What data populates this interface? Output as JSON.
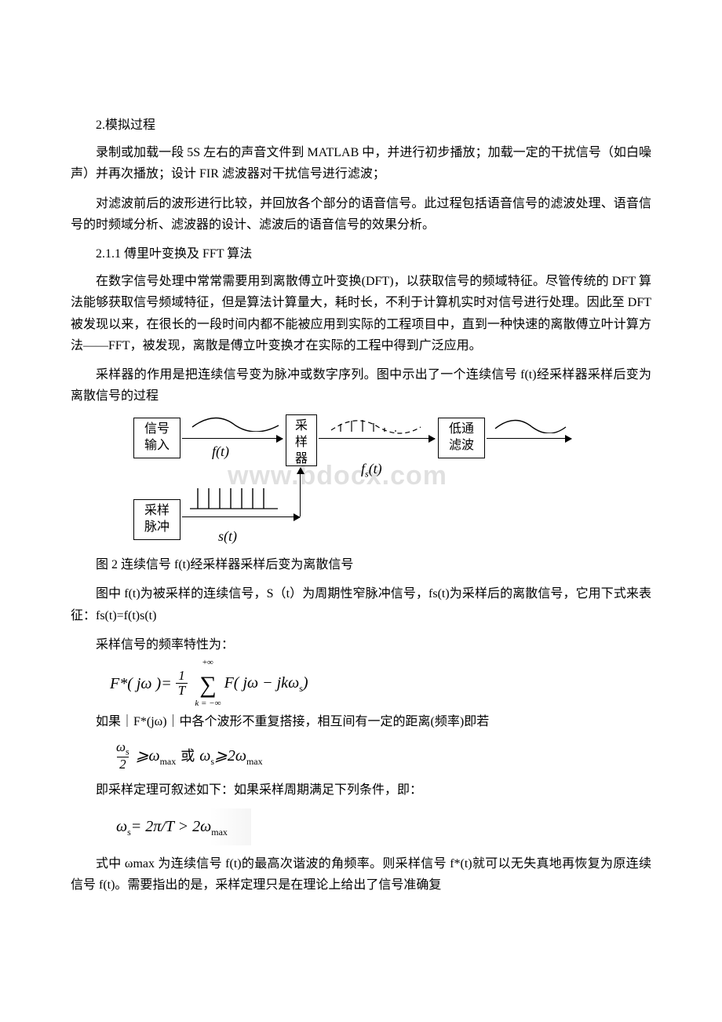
{
  "sections": {
    "s2_head": "2.模拟过程",
    "p1": "录制或加载一段 5S 左右的声音文件到 MATLAB 中，并进行初步播放；加载一定的干扰信号（如白噪声）并再次播放；设计 FIR 滤波器对干扰信号进行滤波；",
    "p2": "对滤波前后的波形进行比较，并回放各个部分的语音信号。此过程包括语音信号的滤波处理、语音信号的时频域分析、滤波器的设计、滤波后的语音信号的效果分析。",
    "s211_head": "2.1.1 傅里叶变换及 FFT 算法",
    "p3": "在数字信号处理中常常需要用到离散傅立叶变换(DFT)，以获取信号的频域特征。尽管传统的 DFT 算法能够获取信号频域特征，但是算法计算量大，耗时长，不利于计算机实时对信号进行处理。因此至 DFT 被发现以来，在很长的一段时间内都不能被应用到实际的工程项目中，直到一种快速的离散傅立叶计算方法——FFT，被发现，离散是傅立叶变换才在实际的工程中得到广泛应用。",
    "p4": "采样器的作用是把连续信号变为脉冲或数字序列。图中示出了一个连续信号 f(t)经采样器采样后变为离散信号的过程",
    "fig_caption": "图 2 连续信号 f(t)经采样器采样后变为离散信号",
    "p5": "图中 f(t)为被采样的连续信号，S（t）为周期性窄脉冲信号，fs(t)为采样后的离散信号，它用下式来表征：fs(t)=f(t)s(t)",
    "p6": "采样信号的频率特性为：",
    "p7": "如果｜F*(jω)｜中各个波形不重复搭接，相互间有一定的距离(频率)即若",
    "p8": "即采样定理可叙述如下：如果采样周期满足下列条件，即：",
    "p9": "式中 ωmax 为连续信号 f(t)的最高次谐波的角频率。则采样信号 f*(t)就可以无失真地再恢复为原连续信号 f(t)。需要指出的是，采样定理只是在理论上给出了信号准确复"
  },
  "diagram": {
    "box_input": "信号\n输入",
    "box_sampler": "采\n样\n器",
    "box_lowpass": "低通\n滤波",
    "box_pulse": "采样\n脉冲",
    "label_ft": "f(t)",
    "label_fst": "f_s(t)",
    "label_st": "s(t)",
    "watermark": "www.bdocx.com",
    "colors": {
      "line": "#000000",
      "bg": "#ffffff"
    }
  },
  "formulas": {
    "f1_lhs": "F*( jω )",
    "f1_eq": " = ",
    "f1_frac_num": "1",
    "f1_frac_den": "T",
    "f1_sum_top": "+∞",
    "f1_sum_bot": "k = −∞",
    "f1_rhs": "F( jω − jkω",
    "f1_rhs_sub": "s",
    "f1_rhs_tail": ")",
    "f2_lhs_num": "ω",
    "f2_lhs_num_sub": "s",
    "f2_lhs_den": "2",
    "f2_ge": " ⩾ ",
    "f2_mid": "ω",
    "f2_mid_sub": "max",
    "f2_or": "或",
    "f2_r_lhs": "ω",
    "f2_r_lhs_sub": "s",
    "f2_r_rhs": "2ω",
    "f2_r_rhs_sub": "max",
    "f3_lhs": "ω",
    "f3_lhs_sub": "s",
    "f3_body": " = 2π/T > 2ω",
    "f3_body_sub": "max"
  }
}
